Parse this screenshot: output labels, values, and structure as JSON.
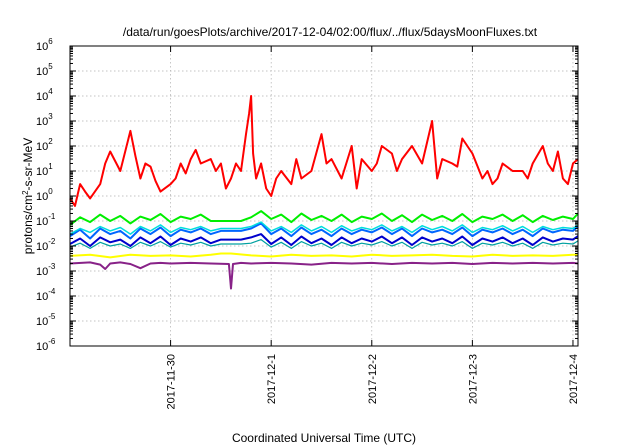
{
  "chart_data": {
    "type": "line",
    "title": "/data/run/goesPlots/archive/2017-12-04/02:00/flux/../flux/5daysMoonFluxes.txt",
    "xlabel": "Coordinated Universal Time (UTC)",
    "ylabel": {
      "base": "protons/cm",
      "sup": "2",
      "rest": "-s-sr-MeV"
    },
    "yscale": "log",
    "ylim": [
      1e-06,
      1000000.0
    ],
    "xlim": [
      2017.1129,
      2017.1204
    ],
    "x_range_days": [
      0.0,
      5.05
    ],
    "grid": true,
    "legend": "none",
    "yticks": [
      {
        "base": "10",
        "exp": "6",
        "value": 6
      },
      {
        "base": "10",
        "exp": "5",
        "value": 5
      },
      {
        "base": "10",
        "exp": "4",
        "value": 4
      },
      {
        "base": "10",
        "exp": "3",
        "value": 3
      },
      {
        "base": "10",
        "exp": "2",
        "value": 2
      },
      {
        "base": "10",
        "exp": "1",
        "value": 1
      },
      {
        "base": "10",
        "exp": "0",
        "value": 0
      },
      {
        "base": "10",
        "exp": "-1",
        "value": -1
      },
      {
        "base": "10",
        "exp": "-2",
        "value": -2
      },
      {
        "base": "10",
        "exp": "-3",
        "value": -3
      },
      {
        "base": "10",
        "exp": "-4",
        "value": -4
      },
      {
        "base": "10",
        "exp": "-5",
        "value": -5
      },
      {
        "base": "10",
        "exp": "-6",
        "value": -6
      }
    ],
    "xticks": [
      {
        "label": "2017-11-30",
        "day": 1.0
      },
      {
        "label": "2017-12-1",
        "day": 2.0
      },
      {
        "label": "2017-12-2",
        "day": 3.0
      },
      {
        "label": "2017-12-3",
        "day": 4.0
      },
      {
        "label": "2017-12-4",
        "day": 5.0
      }
    ],
    "series": [
      {
        "color": "#ff0000",
        "width": 2,
        "x": [
          0.0,
          0.05,
          0.1,
          0.15,
          0.2,
          0.3,
          0.35,
          0.4,
          0.5,
          0.6,
          0.65,
          0.7,
          0.75,
          0.8,
          0.85,
          0.9,
          1.0,
          1.05,
          1.1,
          1.15,
          1.2,
          1.25,
          1.3,
          1.4,
          1.45,
          1.5,
          1.55,
          1.6,
          1.65,
          1.7,
          1.75,
          1.78,
          1.8,
          1.82,
          1.85,
          1.9,
          1.95,
          2.0,
          2.05,
          2.1,
          2.2,
          2.25,
          2.3,
          2.4,
          2.5,
          2.55,
          2.6,
          2.7,
          2.8,
          2.85,
          2.9,
          3.0,
          3.05,
          3.1,
          3.2,
          3.25,
          3.3,
          3.4,
          3.5,
          3.6,
          3.65,
          3.7,
          3.8,
          3.85,
          3.9,
          4.0,
          4.1,
          4.15,
          4.2,
          4.25,
          4.3,
          4.4,
          4.5,
          4.55,
          4.6,
          4.7,
          4.75,
          4.8,
          4.85,
          4.9,
          4.95,
          5.0,
          5.05
        ],
        "y": [
          0.8,
          0.4,
          3,
          1.5,
          0.8,
          3,
          20,
          60,
          10,
          400,
          40,
          5,
          20,
          15,
          4,
          1.5,
          3,
          5,
          20,
          8,
          30,
          70,
          20,
          30,
          10,
          20,
          2,
          5,
          20,
          10,
          300,
          2000,
          10000,
          50,
          5,
          20,
          2,
          1,
          5,
          10,
          3,
          30,
          5,
          10,
          300,
          20,
          30,
          5,
          100,
          2,
          30,
          10,
          20,
          100,
          50,
          10,
          30,
          100,
          20,
          1000,
          5,
          30,
          20,
          15,
          200,
          50,
          5,
          10,
          3,
          5,
          20,
          10,
          10,
          5,
          20,
          100,
          20,
          10,
          60,
          5,
          3,
          20,
          30
        ]
      },
      {
        "color": "#00ee00",
        "width": 2,
        "x": [
          0.0,
          0.1,
          0.2,
          0.3,
          0.4,
          0.5,
          0.6,
          0.7,
          0.8,
          0.9,
          1.0,
          1.1,
          1.2,
          1.3,
          1.4,
          1.5,
          1.6,
          1.7,
          1.8,
          1.9,
          2.0,
          2.1,
          2.2,
          2.3,
          2.4,
          2.5,
          2.6,
          2.7,
          2.8,
          2.9,
          3.0,
          3.1,
          3.2,
          3.3,
          3.4,
          3.5,
          3.6,
          3.7,
          3.8,
          3.9,
          4.0,
          4.1,
          4.2,
          4.3,
          4.4,
          4.5,
          4.6,
          4.7,
          4.8,
          4.9,
          5.0,
          5.05
        ],
        "y": [
          0.07,
          0.14,
          0.09,
          0.18,
          0.1,
          0.16,
          0.08,
          0.15,
          0.11,
          0.19,
          0.09,
          0.15,
          0.12,
          0.18,
          0.1,
          0.1,
          0.1,
          0.1,
          0.14,
          0.25,
          0.12,
          0.18,
          0.09,
          0.2,
          0.11,
          0.16,
          0.1,
          0.18,
          0.09,
          0.15,
          0.12,
          0.2,
          0.1,
          0.17,
          0.09,
          0.18,
          0.11,
          0.16,
          0.1,
          0.19,
          0.09,
          0.15,
          0.12,
          0.18,
          0.1,
          0.17,
          0.09,
          0.16,
          0.11,
          0.15,
          0.12,
          0.2
        ]
      },
      {
        "color": "#00dddd",
        "width": 1.5,
        "x": [
          0.0,
          0.1,
          0.2,
          0.3,
          0.4,
          0.5,
          0.6,
          0.7,
          0.8,
          0.9,
          1.0,
          1.1,
          1.2,
          1.3,
          1.4,
          1.5,
          1.6,
          1.7,
          1.8,
          1.9,
          2.0,
          2.1,
          2.2,
          2.3,
          2.4,
          2.5,
          2.6,
          2.7,
          2.8,
          2.9,
          3.0,
          3.1,
          3.2,
          3.3,
          3.4,
          3.5,
          3.6,
          3.7,
          3.8,
          3.9,
          4.0,
          4.1,
          4.2,
          4.3,
          4.4,
          4.5,
          4.6,
          4.7,
          4.8,
          4.9,
          5.0,
          5.05
        ],
        "y": [
          0.03,
          0.05,
          0.035,
          0.06,
          0.04,
          0.055,
          0.03,
          0.06,
          0.04,
          0.07,
          0.035,
          0.055,
          0.045,
          0.06,
          0.04,
          0.05,
          0.05,
          0.05,
          0.06,
          0.09,
          0.04,
          0.06,
          0.035,
          0.07,
          0.04,
          0.06,
          0.035,
          0.065,
          0.04,
          0.055,
          0.045,
          0.07,
          0.04,
          0.06,
          0.035,
          0.065,
          0.045,
          0.06,
          0.04,
          0.07,
          0.035,
          0.055,
          0.045,
          0.065,
          0.04,
          0.06,
          0.035,
          0.06,
          0.045,
          0.055,
          0.05,
          0.07
        ]
      },
      {
        "color": "#0066ff",
        "width": 2,
        "x": [
          0.0,
          0.1,
          0.2,
          0.3,
          0.4,
          0.5,
          0.6,
          0.7,
          0.8,
          0.9,
          1.0,
          1.1,
          1.2,
          1.3,
          1.4,
          1.5,
          1.6,
          1.7,
          1.8,
          1.9,
          2.0,
          2.1,
          2.2,
          2.3,
          2.4,
          2.5,
          2.6,
          2.7,
          2.8,
          2.9,
          3.0,
          3.1,
          3.2,
          3.3,
          3.4,
          3.5,
          3.6,
          3.7,
          3.8,
          3.9,
          4.0,
          4.1,
          4.2,
          4.3,
          4.4,
          4.5,
          4.6,
          4.7,
          4.8,
          4.9,
          5.0,
          5.05
        ],
        "y": [
          0.025,
          0.045,
          0.02,
          0.05,
          0.03,
          0.04,
          0.02,
          0.05,
          0.03,
          0.055,
          0.025,
          0.045,
          0.035,
          0.05,
          0.03,
          0.04,
          0.04,
          0.04,
          0.05,
          0.08,
          0.03,
          0.05,
          0.025,
          0.055,
          0.03,
          0.045,
          0.025,
          0.05,
          0.03,
          0.045,
          0.035,
          0.055,
          0.03,
          0.05,
          0.025,
          0.05,
          0.035,
          0.045,
          0.03,
          0.055,
          0.025,
          0.045,
          0.035,
          0.05,
          0.03,
          0.045,
          0.025,
          0.05,
          0.035,
          0.045,
          0.04,
          0.06
        ]
      },
      {
        "color": "#0000cc",
        "width": 2,
        "x": [
          0.0,
          0.1,
          0.2,
          0.3,
          0.4,
          0.5,
          0.6,
          0.7,
          0.8,
          0.9,
          1.0,
          1.1,
          1.2,
          1.3,
          1.4,
          1.5,
          1.6,
          1.7,
          1.8,
          1.9,
          2.0,
          2.1,
          2.2,
          2.3,
          2.4,
          2.5,
          2.6,
          2.7,
          2.8,
          2.9,
          3.0,
          3.1,
          3.2,
          3.3,
          3.4,
          3.5,
          3.6,
          3.7,
          3.8,
          3.9,
          4.0,
          4.1,
          4.2,
          4.3,
          4.4,
          4.5,
          4.6,
          4.7,
          4.8,
          4.9,
          5.0,
          5.05
        ],
        "y": [
          0.012,
          0.02,
          0.01,
          0.022,
          0.014,
          0.018,
          0.01,
          0.022,
          0.013,
          0.024,
          0.011,
          0.02,
          0.015,
          0.022,
          0.013,
          0.018,
          0.018,
          0.018,
          0.022,
          0.03,
          0.012,
          0.022,
          0.011,
          0.024,
          0.013,
          0.02,
          0.011,
          0.022,
          0.013,
          0.02,
          0.015,
          0.024,
          0.013,
          0.022,
          0.011,
          0.022,
          0.015,
          0.02,
          0.013,
          0.024,
          0.011,
          0.02,
          0.015,
          0.022,
          0.013,
          0.02,
          0.011,
          0.022,
          0.015,
          0.02,
          0.018,
          0.025
        ]
      },
      {
        "color": "#00a0a0",
        "width": 1.2,
        "x": [
          0.0,
          0.1,
          0.2,
          0.3,
          0.4,
          0.5,
          0.6,
          0.7,
          0.8,
          0.9,
          1.0,
          1.1,
          1.2,
          1.3,
          1.4,
          1.5,
          1.6,
          1.7,
          1.8,
          1.9,
          2.0,
          2.1,
          2.2,
          2.3,
          2.4,
          2.5,
          2.6,
          2.7,
          2.8,
          2.9,
          3.0,
          3.1,
          3.2,
          3.3,
          3.4,
          3.5,
          3.6,
          3.7,
          3.8,
          3.9,
          4.0,
          4.1,
          4.2,
          4.3,
          4.4,
          4.5,
          4.6,
          4.7,
          4.8,
          4.9,
          5.0,
          5.05
        ],
        "y": [
          0.009,
          0.013,
          0.008,
          0.014,
          0.01,
          0.012,
          0.008,
          0.014,
          0.01,
          0.015,
          0.009,
          0.013,
          0.011,
          0.014,
          0.01,
          0.012,
          0.012,
          0.012,
          0.013,
          0.018,
          0.009,
          0.014,
          0.008,
          0.015,
          0.01,
          0.013,
          0.008,
          0.014,
          0.01,
          0.013,
          0.011,
          0.015,
          0.01,
          0.014,
          0.008,
          0.014,
          0.011,
          0.013,
          0.01,
          0.015,
          0.008,
          0.013,
          0.011,
          0.014,
          0.01,
          0.013,
          0.008,
          0.014,
          0.011,
          0.013,
          0.012,
          0.016
        ]
      },
      {
        "color": "#ffff00",
        "width": 2,
        "x": [
          0.0,
          0.2,
          0.4,
          0.6,
          0.8,
          1.0,
          1.2,
          1.4,
          1.5,
          1.6,
          1.8,
          2.0,
          2.2,
          2.4,
          2.6,
          2.8,
          3.0,
          3.2,
          3.4,
          3.6,
          3.8,
          4.0,
          4.2,
          4.4,
          4.6,
          4.8,
          5.0,
          5.05
        ],
        "y": [
          0.004,
          0.0045,
          0.0035,
          0.0045,
          0.004,
          0.0042,
          0.0038,
          0.0045,
          0.005,
          0.005,
          0.0042,
          0.0038,
          0.0045,
          0.004,
          0.0042,
          0.0038,
          0.0045,
          0.004,
          0.0042,
          0.0045,
          0.004,
          0.0038,
          0.0045,
          0.004,
          0.0042,
          0.004,
          0.0045,
          0.0045
        ]
      },
      {
        "color": "#882288",
        "width": 2,
        "x": [
          0.0,
          0.2,
          0.3,
          0.35,
          0.4,
          0.5,
          0.6,
          0.7,
          0.8,
          0.9,
          1.0,
          1.2,
          1.4,
          1.58,
          1.6,
          1.62,
          1.7,
          1.8,
          2.0,
          2.2,
          2.4,
          2.6,
          2.8,
          3.0,
          3.2,
          3.4,
          3.6,
          3.8,
          4.0,
          4.2,
          4.4,
          4.6,
          4.8,
          5.0,
          5.05
        ],
        "y": [
          0.002,
          0.0022,
          0.0018,
          0.0012,
          0.002,
          0.0022,
          0.0019,
          0.0013,
          0.002,
          0.0021,
          0.002,
          0.0021,
          0.002,
          0.0019,
          0.0002,
          0.0019,
          0.0021,
          0.002,
          0.0021,
          0.002,
          0.0018,
          0.0021,
          0.002,
          0.0021,
          0.0019,
          0.0021,
          0.002,
          0.0021,
          0.0019,
          0.0021,
          0.002,
          0.0021,
          0.002,
          0.0021,
          0.002
        ]
      }
    ]
  }
}
